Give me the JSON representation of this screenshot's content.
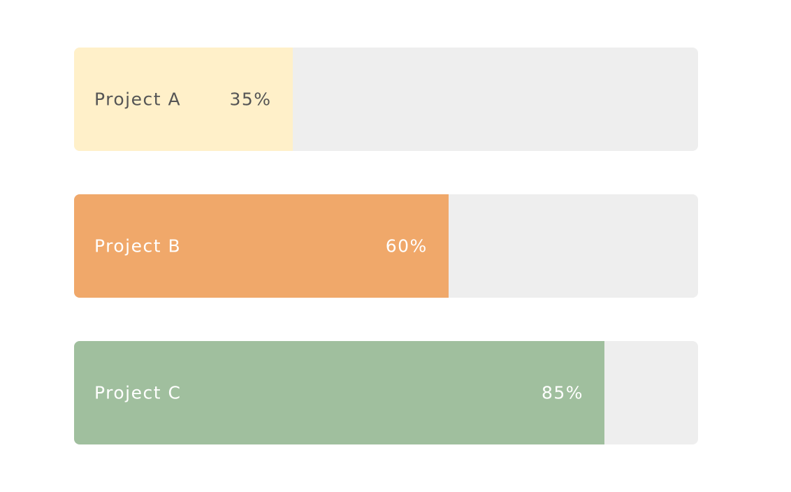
{
  "progress": {
    "xlim": [
      0,
      100
    ],
    "track_color": "#eeeeee",
    "bars": [
      {
        "label": "Project A",
        "value": 35,
        "value_label": "35%",
        "color": "#fff0c9",
        "text_color": "#555555"
      },
      {
        "label": "Project B",
        "value": 60,
        "value_label": "60%",
        "color": "#f0a86a",
        "text_color": "#ffffff"
      },
      {
        "label": "Project C",
        "value": 85,
        "value_label": "85%",
        "color": "#a0bf9e",
        "text_color": "#ffffff"
      }
    ]
  }
}
